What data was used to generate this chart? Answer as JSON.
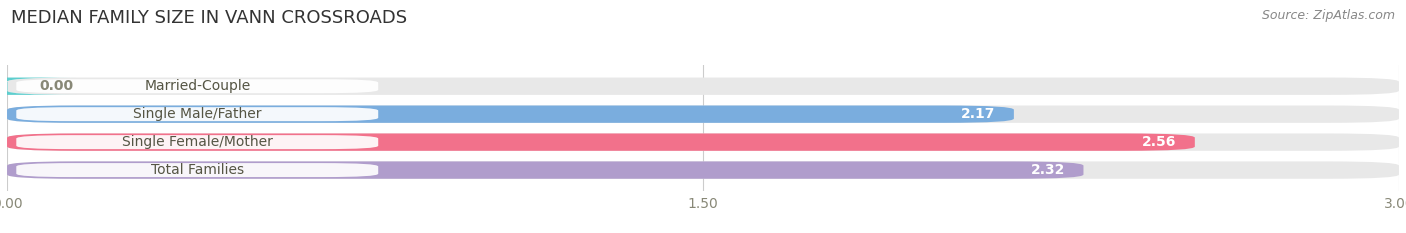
{
  "title": "MEDIAN FAMILY SIZE IN VANN CROSSROADS",
  "source": "Source: ZipAtlas.com",
  "categories": [
    "Married-Couple",
    "Single Male/Father",
    "Single Female/Mother",
    "Total Families"
  ],
  "values": [
    0.0,
    2.17,
    2.56,
    2.32
  ],
  "bar_colors": [
    "#5ecece",
    "#7aadde",
    "#f2718b",
    "#b09dcc"
  ],
  "bar_track_color": "#e8e8e8",
  "label_bg_color": "#ffffff",
  "xlim": [
    0,
    3.0
  ],
  "xticks": [
    0.0,
    1.5,
    3.0
  ],
  "xtick_labels": [
    "0.00",
    "1.50",
    "3.00"
  ],
  "value_labels": [
    "0.00",
    "2.17",
    "2.56",
    "2.32"
  ],
  "bar_height": 0.62,
  "label_fontsize": 10,
  "title_fontsize": 13,
  "value_fontsize": 10,
  "source_fontsize": 9,
  "background_color": "#ffffff",
  "grid_color": "#cccccc",
  "text_color": "#555544",
  "value_color_inside": "#ffffff",
  "value_color_outside": "#888877"
}
